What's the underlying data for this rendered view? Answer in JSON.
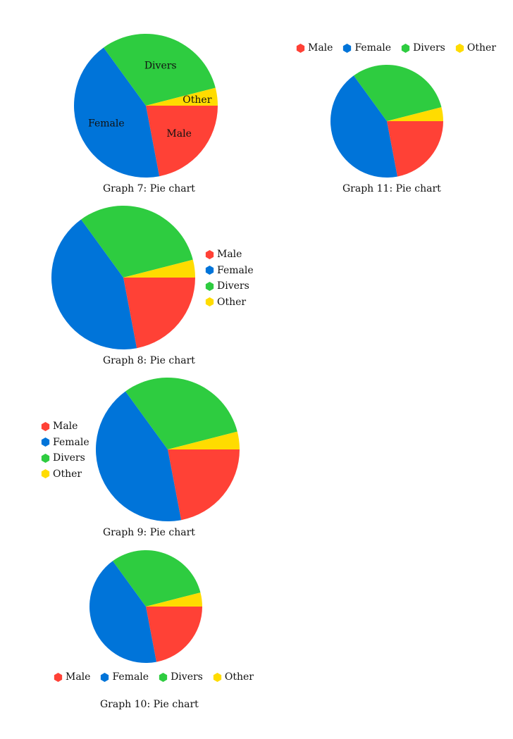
{
  "palette": {
    "Male": "#ff4136",
    "Female": "#0074d9",
    "Divers": "#2ecc40",
    "Other": "#ffdc00"
  },
  "chart_data": [
    {
      "id": "graph-7",
      "type": "pie",
      "caption": "Graph 7: Pie chart",
      "slice_labels": true,
      "legend": "none",
      "series": [
        {
          "name": "Male",
          "value": 22
        },
        {
          "name": "Female",
          "value": 43
        },
        {
          "name": "Divers",
          "value": 31
        },
        {
          "name": "Other",
          "value": 4
        }
      ]
    },
    {
      "id": "graph-8",
      "type": "pie",
      "caption": "Graph 8: Pie chart",
      "slice_labels": false,
      "legend": "right",
      "series": [
        {
          "name": "Male",
          "value": 22
        },
        {
          "name": "Female",
          "value": 43
        },
        {
          "name": "Divers",
          "value": 31
        },
        {
          "name": "Other",
          "value": 4
        }
      ]
    },
    {
      "id": "graph-9",
      "type": "pie",
      "caption": "Graph 9: Pie chart",
      "slice_labels": false,
      "legend": "left",
      "series": [
        {
          "name": "Male",
          "value": 22
        },
        {
          "name": "Female",
          "value": 43
        },
        {
          "name": "Divers",
          "value": 31
        },
        {
          "name": "Other",
          "value": 4
        }
      ]
    },
    {
      "id": "graph-10",
      "type": "pie",
      "caption": "Graph 10: Pie chart",
      "slice_labels": false,
      "legend": "bottom",
      "series": [
        {
          "name": "Male",
          "value": 22
        },
        {
          "name": "Female",
          "value": 43
        },
        {
          "name": "Divers",
          "value": 31
        },
        {
          "name": "Other",
          "value": 4
        }
      ]
    },
    {
      "id": "graph-11",
      "type": "pie",
      "caption": "Graph 11: Pie chart",
      "slice_labels": false,
      "legend": "top",
      "series": [
        {
          "name": "Male",
          "value": 22
        },
        {
          "name": "Female",
          "value": 43
        },
        {
          "name": "Divers",
          "value": 31
        },
        {
          "name": "Other",
          "value": 4
        }
      ]
    }
  ]
}
